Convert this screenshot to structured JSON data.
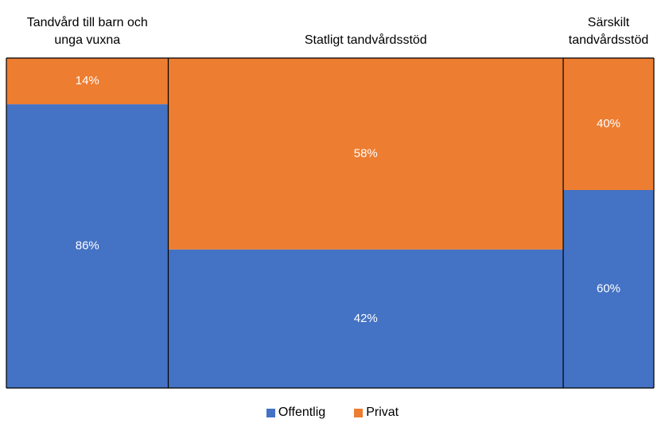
{
  "chart_data": {
    "type": "mekko",
    "categories": [
      "Tandvård till barn och unga vuxna",
      "Statligt tandvårdsstöd",
      "Särskilt tandvårdsstöd"
    ],
    "widths": [
      25,
      61,
      14
    ],
    "series": [
      {
        "name": "Offentlig",
        "color": "#4472c4",
        "values": [
          86,
          42,
          60
        ],
        "value_labels": [
          "86%",
          "42%",
          "60%"
        ]
      },
      {
        "name": "Privat",
        "color": "#ed7d31",
        "values": [
          14,
          58,
          40
        ],
        "value_labels": [
          "14%",
          "58%",
          "40%"
        ]
      }
    ]
  }
}
